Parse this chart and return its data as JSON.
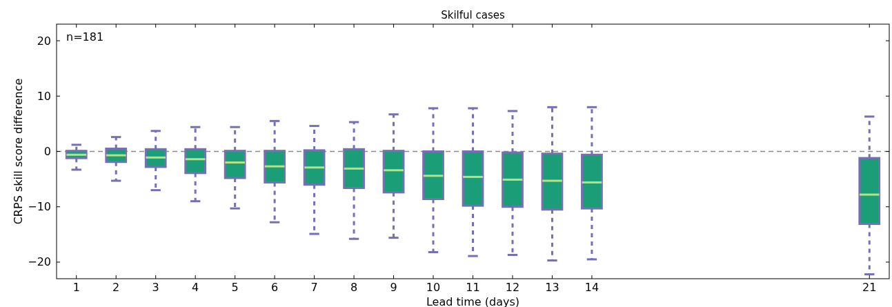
{
  "chart_data": {
    "type": "box",
    "title": "Skilful cases",
    "xlabel": "Lead time (days)",
    "ylabel": "CRPS skill score difference",
    "annotations": [
      "n=181"
    ],
    "x": [
      1,
      2,
      3,
      4,
      5,
      6,
      7,
      8,
      9,
      10,
      11,
      12,
      13,
      14,
      21
    ],
    "xlim": [
      0.5,
      21.5
    ],
    "xticks": [
      1,
      2,
      3,
      4,
      5,
      6,
      7,
      8,
      9,
      10,
      11,
      12,
      13,
      14,
      21
    ],
    "ylim": [
      -23,
      23
    ],
    "yticks": [
      -20,
      -10,
      0,
      10,
      20
    ],
    "grid": false,
    "ref_lines": [
      {
        "axis": "y",
        "value": 0,
        "color": "#888888",
        "line_style": "dashed"
      }
    ],
    "series": [
      {
        "color": "#1b9e77",
        "boxes": [
          {
            "low": -3.3,
            "q1": -1.2,
            "median": -0.6,
            "q3": 0.1,
            "high": 1.2
          },
          {
            "low": -5.3,
            "q1": -1.9,
            "median": -0.7,
            "q3": 0.5,
            "high": 2.6
          },
          {
            "low": -7.0,
            "q1": -2.8,
            "median": -1.1,
            "q3": 0.4,
            "high": 3.7
          },
          {
            "low": -9.0,
            "q1": -3.9,
            "median": -1.4,
            "q3": 0.4,
            "high": 4.4
          },
          {
            "low": -10.3,
            "q1": -4.8,
            "median": -2.0,
            "q3": 0.1,
            "high": 4.4
          },
          {
            "low": -12.8,
            "q1": -5.6,
            "median": -2.7,
            "q3": 0.1,
            "high": 5.5
          },
          {
            "low": -14.9,
            "q1": -6.0,
            "median": -2.9,
            "q3": 0.2,
            "high": 4.6
          },
          {
            "low": -15.8,
            "q1": -6.6,
            "median": -3.1,
            "q3": 0.4,
            "high": 5.3
          },
          {
            "low": -15.6,
            "q1": -7.4,
            "median": -3.4,
            "q3": 0.1,
            "high": 6.7
          },
          {
            "low": -18.2,
            "q1": -8.6,
            "median": -4.4,
            "q3": 0.0,
            "high": 7.8
          },
          {
            "low": -18.9,
            "q1": -9.8,
            "median": -4.6,
            "q3": 0.0,
            "high": 7.8
          },
          {
            "low": -18.7,
            "q1": -10.0,
            "median": -5.1,
            "q3": -0.2,
            "high": 7.3
          },
          {
            "low": -19.7,
            "q1": -10.5,
            "median": -5.3,
            "q3": -0.4,
            "high": 8.0
          },
          {
            "low": -19.5,
            "q1": -10.3,
            "median": -5.6,
            "q3": -0.6,
            "high": 8.0
          },
          {
            "low": -22.2,
            "q1": -13.1,
            "median": -7.8,
            "q3": -1.2,
            "high": 6.3
          }
        ]
      }
    ]
  }
}
